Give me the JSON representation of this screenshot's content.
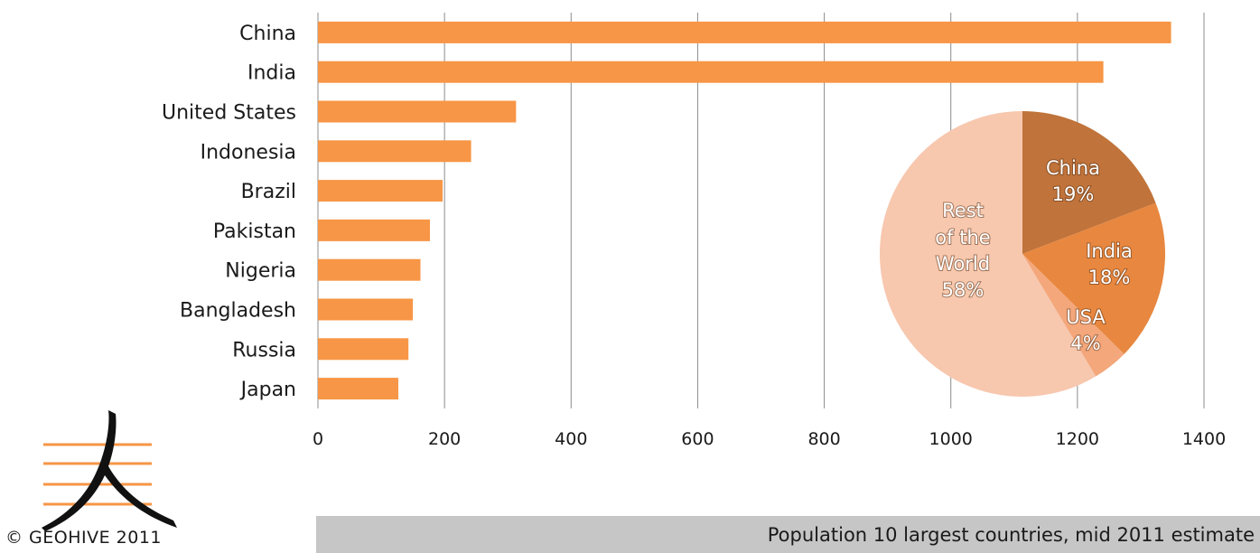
{
  "chart_data": [
    {
      "type": "bar",
      "orientation": "horizontal",
      "categories": [
        "China",
        "India",
        "United States",
        "Indonesia",
        "Brazil",
        "Pakistan",
        "Nigeria",
        "Bangladesh",
        "Russia",
        "Japan"
      ],
      "values": [
        1348,
        1241,
        313,
        242,
        197,
        177,
        162,
        150,
        143,
        127
      ],
      "xlim": [
        0,
        1400
      ],
      "xticks": [
        0,
        200,
        400,
        600,
        800,
        1000,
        1200,
        1400
      ],
      "xtick_labels": [
        "0",
        "200",
        "400",
        "600",
        "800",
        "1000",
        "1200",
        "1400"
      ],
      "grid": "vertical",
      "bar_color": "#f79646",
      "grid_color": "#8c8c8c"
    },
    {
      "type": "pie",
      "slices": [
        {
          "label": "China",
          "percent": 19,
          "display": "19%",
          "color": "#c0733a"
        },
        {
          "label": "India",
          "percent": 18,
          "display": "18%",
          "color": "#e8873f"
        },
        {
          "label": "USA",
          "percent": 4,
          "display": "4%",
          "color": "#f3a77a"
        },
        {
          "label": "Rest of the World",
          "percent": 58,
          "display": "58%",
          "color": "#f7c7ae"
        }
      ]
    }
  ],
  "footer": {
    "caption": "Population 10 largest countries, mid 2011 estimate"
  },
  "logo": {
    "text": "© GEOHIVE 2011",
    "icon": "ren-character-logo"
  }
}
